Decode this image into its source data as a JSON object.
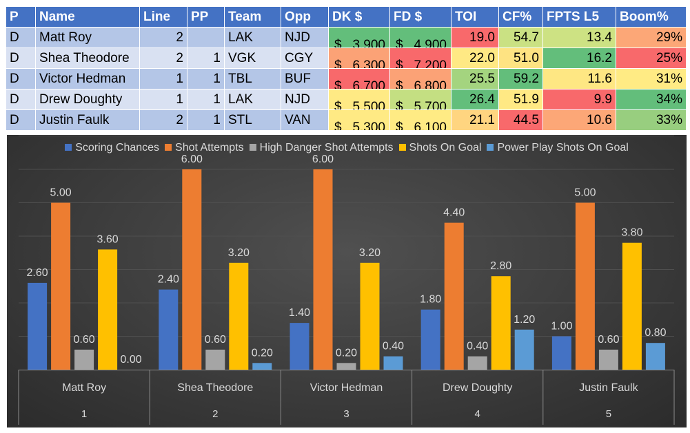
{
  "table": {
    "headers": [
      "P",
      "Name",
      "Line",
      "PP",
      "Team",
      "Opp",
      "DK $",
      "FD $",
      "TOI",
      "CF%",
      "FPTS L5",
      "Boom%"
    ],
    "rows": [
      {
        "p": "D",
        "name": "Matt Roy",
        "line": "2",
        "pp": "",
        "team": "LAK",
        "opp": "NJD",
        "dk_cur": "$",
        "dk": "3,900",
        "fd_cur": "$",
        "fd": "4,900",
        "toi": "19.0",
        "cf": "54.7",
        "fpts": "13.4",
        "boom": "29%",
        "colors": {
          "dk": "#63be7b",
          "fd": "#63be7b",
          "toi": "#f8696b",
          "cf": "#cae183",
          "fpts": "#cde283",
          "boom": "#fca777"
        }
      },
      {
        "p": "D",
        "name": "Shea Theodore",
        "line": "2",
        "pp": "1",
        "team": "VGK",
        "opp": "CGY",
        "dk_cur": "$",
        "dk": "6,300",
        "fd_cur": "$",
        "fd": "7,200",
        "toi": "22.0",
        "cf": "51.0",
        "fpts": "16.2",
        "boom": "25%",
        "colors": {
          "dk": "#fba276",
          "fd": "#f8696b",
          "toi": "#ffe984",
          "cf": "#fee382",
          "fpts": "#63be7b",
          "boom": "#f8696b"
        }
      },
      {
        "p": "D",
        "name": "Victor Hedman",
        "line": "1",
        "pp": "1",
        "team": "TBL",
        "opp": "BUF",
        "dk_cur": "$",
        "dk": "6,700",
        "fd_cur": "$",
        "fd": "6,800",
        "toi": "25.5",
        "cf": "59.2",
        "fpts": "11.6",
        "boom": "31%",
        "colors": {
          "dk": "#f8696b",
          "fd": "#fba276",
          "toi": "#a4d47f",
          "cf": "#63be7b",
          "fpts": "#fee783",
          "boom": "#ffeb84"
        }
      },
      {
        "p": "D",
        "name": "Drew Doughty",
        "line": "1",
        "pp": "1",
        "team": "LAK",
        "opp": "NJD",
        "dk_cur": "$",
        "dk": "5,500",
        "fd_cur": "$",
        "fd": "5,700",
        "toi": "26.4",
        "cf": "51.9",
        "fpts": "9.9",
        "boom": "34%",
        "colors": {
          "dk": "#ffea84",
          "fd": "#c4df82",
          "toi": "#63be7b",
          "cf": "#ffe984",
          "fpts": "#f8696b",
          "boom": "#63be7b"
        }
      },
      {
        "p": "D",
        "name": "Justin Faulk",
        "line": "2",
        "pp": "1",
        "team": "STL",
        "opp": "VAN",
        "dk_cur": "$",
        "dk": "5,300",
        "fd_cur": "$",
        "fd": "6,100",
        "toi": "21.1",
        "cf": "44.5",
        "fpts": "10.6",
        "boom": "33%",
        "colors": {
          "dk": "#ffea84",
          "fd": "#ffeb84",
          "toi": "#ffd580",
          "cf": "#f8696b",
          "fpts": "#fca777",
          "boom": "#98ce7f"
        }
      }
    ]
  },
  "chart_data": {
    "type": "bar",
    "title": "",
    "xlabel": "",
    "ylabel": "",
    "ylim": [
      0,
      7
    ],
    "grid": true,
    "legend_position": "top",
    "categories": [
      "Matt Roy",
      "Shea Theodore",
      "Victor Hedman",
      "Drew Doughty",
      "Justin Faulk"
    ],
    "category_index": [
      "1",
      "2",
      "3",
      "4",
      "5"
    ],
    "series": [
      {
        "name": "Scoring Chances",
        "color": "#4472c4",
        "values": [
          2.6,
          2.4,
          1.4,
          1.8,
          1.0
        ],
        "labels": [
          "2.60",
          "2.40",
          "1.40",
          "1.80",
          "1.00"
        ]
      },
      {
        "name": "Shot Attempts",
        "color": "#ed7d31",
        "values": [
          5.0,
          6.0,
          6.0,
          4.4,
          5.0
        ],
        "labels": [
          "5.00",
          "6.00",
          "6.00",
          "4.40",
          "5.00"
        ]
      },
      {
        "name": "High Danger Shot Attempts",
        "color": "#a5a5a5",
        "values": [
          0.6,
          0.6,
          0.2,
          0.4,
          0.6
        ],
        "labels": [
          "0.60",
          "0.60",
          "0.20",
          "0.40",
          "0.60"
        ]
      },
      {
        "name": "Shots On Goal",
        "color": "#ffc000",
        "values": [
          3.6,
          3.2,
          3.2,
          2.8,
          3.8
        ],
        "labels": [
          "3.60",
          "3.20",
          "3.20",
          "2.80",
          "3.80"
        ]
      },
      {
        "name": "Power Play Shots On Goal",
        "color": "#5b9bd5",
        "values": [
          0.0,
          0.2,
          0.4,
          1.2,
          0.8
        ],
        "labels": [
          "0.00",
          "0.20",
          "0.40",
          "1.20",
          "0.80"
        ]
      }
    ]
  }
}
